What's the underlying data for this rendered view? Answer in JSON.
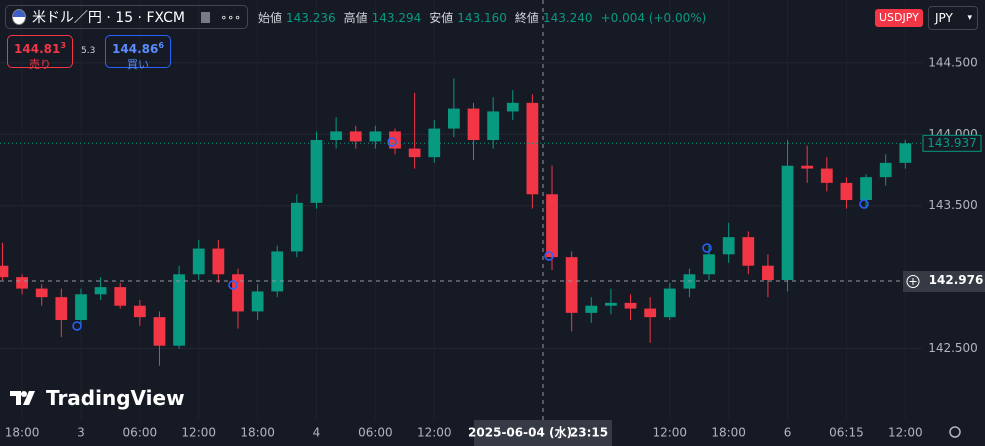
{
  "toolbar": {
    "symbol": "米ドル／円 · 15 · FXCM",
    "more": "∘∘∘",
    "open_label": "始値",
    "open_value": "143.236",
    "high_label": "高値",
    "high_value": "143.294",
    "low_label": "安値",
    "low_value": "143.160",
    "close_label": "終値",
    "close_value": "143.240",
    "change": "+0.004 (+0.00%)",
    "sell_price": "144.81",
    "sell_price_sup": "3",
    "sell_label": "売り",
    "spread": "5.3",
    "buy_price": "144.86",
    "buy_price_sup": "6",
    "buy_label": "買い",
    "symbol_badge": "USDJPY",
    "currency": "JPY",
    "logo": "TradingView"
  },
  "chart_data": {
    "type": "candlestick",
    "up_color": "#089981",
    "down_color": "#f23645",
    "grid": true,
    "open": [
      143.08,
      143.0,
      142.92,
      142.86,
      142.7,
      142.88,
      142.93,
      142.8,
      142.72,
      142.52,
      143.02,
      143.2,
      143.02,
      142.76,
      142.9,
      143.18,
      143.52,
      143.96,
      144.02,
      143.95,
      144.02,
      143.9,
      143.84,
      144.04,
      144.18,
      143.96,
      144.16,
      144.22,
      143.58,
      143.14,
      142.75,
      142.8,
      142.82,
      142.78,
      142.72,
      142.92,
      143.02,
      143.16,
      143.28,
      143.08,
      142.98,
      143.78,
      143.76,
      143.66,
      143.54,
      143.7,
      143.8
    ],
    "high": [
      143.24,
      143.02,
      142.95,
      142.92,
      142.92,
      143.0,
      142.96,
      142.84,
      142.76,
      143.08,
      143.26,
      143.26,
      143.06,
      142.95,
      143.22,
      143.58,
      144.02,
      144.12,
      144.06,
      144.06,
      144.04,
      144.29,
      144.1,
      144.39,
      144.22,
      144.26,
      144.31,
      144.28,
      143.78,
      143.18,
      142.86,
      142.92,
      142.88,
      142.86,
      142.96,
      143.06,
      143.22,
      143.38,
      143.32,
      143.16,
      143.96,
      143.92,
      143.84,
      143.7,
      143.72,
      143.86,
      143.96
    ],
    "low": [
      142.98,
      142.88,
      142.8,
      142.58,
      142.66,
      142.84,
      142.78,
      142.66,
      142.38,
      142.5,
      142.98,
      142.96,
      142.64,
      142.7,
      142.86,
      143.14,
      143.48,
      143.9,
      143.9,
      143.9,
      143.86,
      143.76,
      143.8,
      143.98,
      143.82,
      143.9,
      144.1,
      143.48,
      143.05,
      142.62,
      142.68,
      142.74,
      142.7,
      142.54,
      142.7,
      142.86,
      142.98,
      143.1,
      143.02,
      142.86,
      142.9,
      143.66,
      143.6,
      143.48,
      143.48,
      143.64,
      143.76
    ],
    "close": [
      143.0,
      142.92,
      142.86,
      142.7,
      142.88,
      142.93,
      142.8,
      142.72,
      142.52,
      143.02,
      143.2,
      143.02,
      142.76,
      142.9,
      143.18,
      143.52,
      143.96,
      144.02,
      143.95,
      144.02,
      143.9,
      143.84,
      144.04,
      144.18,
      143.96,
      144.16,
      144.22,
      143.58,
      143.14,
      142.75,
      142.8,
      142.82,
      142.78,
      142.72,
      142.92,
      143.02,
      143.16,
      143.28,
      143.08,
      142.98,
      143.78,
      143.76,
      143.66,
      143.54,
      143.7,
      143.8,
      143.937
    ],
    "xlim": [
      -0.125,
      46.85
    ],
    "xticks": [
      {
        "value": 1,
        "label": "18:00"
      },
      {
        "value": 4,
        "label": "3"
      },
      {
        "value": 7,
        "label": "06:00"
      },
      {
        "value": 10,
        "label": "12:00"
      },
      {
        "value": 13,
        "label": "18:00"
      },
      {
        "value": 16,
        "label": "4"
      },
      {
        "value": 19,
        "label": "06:00"
      },
      {
        "value": 22,
        "label": "12:00"
      },
      {
        "value": 34,
        "label": "12:00"
      },
      {
        "value": 37,
        "label": "18:00"
      },
      {
        "value": 40,
        "label": "6"
      },
      {
        "value": 43,
        "label": "06:15"
      },
      {
        "value": 46,
        "label": "12:00"
      }
    ],
    "ylim": [
      142.0,
      144.94
    ],
    "yticks": [
      {
        "value": 142.5,
        "label": "142.500"
      },
      {
        "value": 143.5,
        "label": "143.500"
      },
      {
        "value": 144.0,
        "label": "144.000"
      },
      {
        "value": 144.5,
        "label": "144.500"
      }
    ],
    "last_price": 143.937,
    "crosshair_price": 142.976,
    "crosshair_date": "2025-06-04 (水)",
    "crosshair_time": "23:15"
  }
}
